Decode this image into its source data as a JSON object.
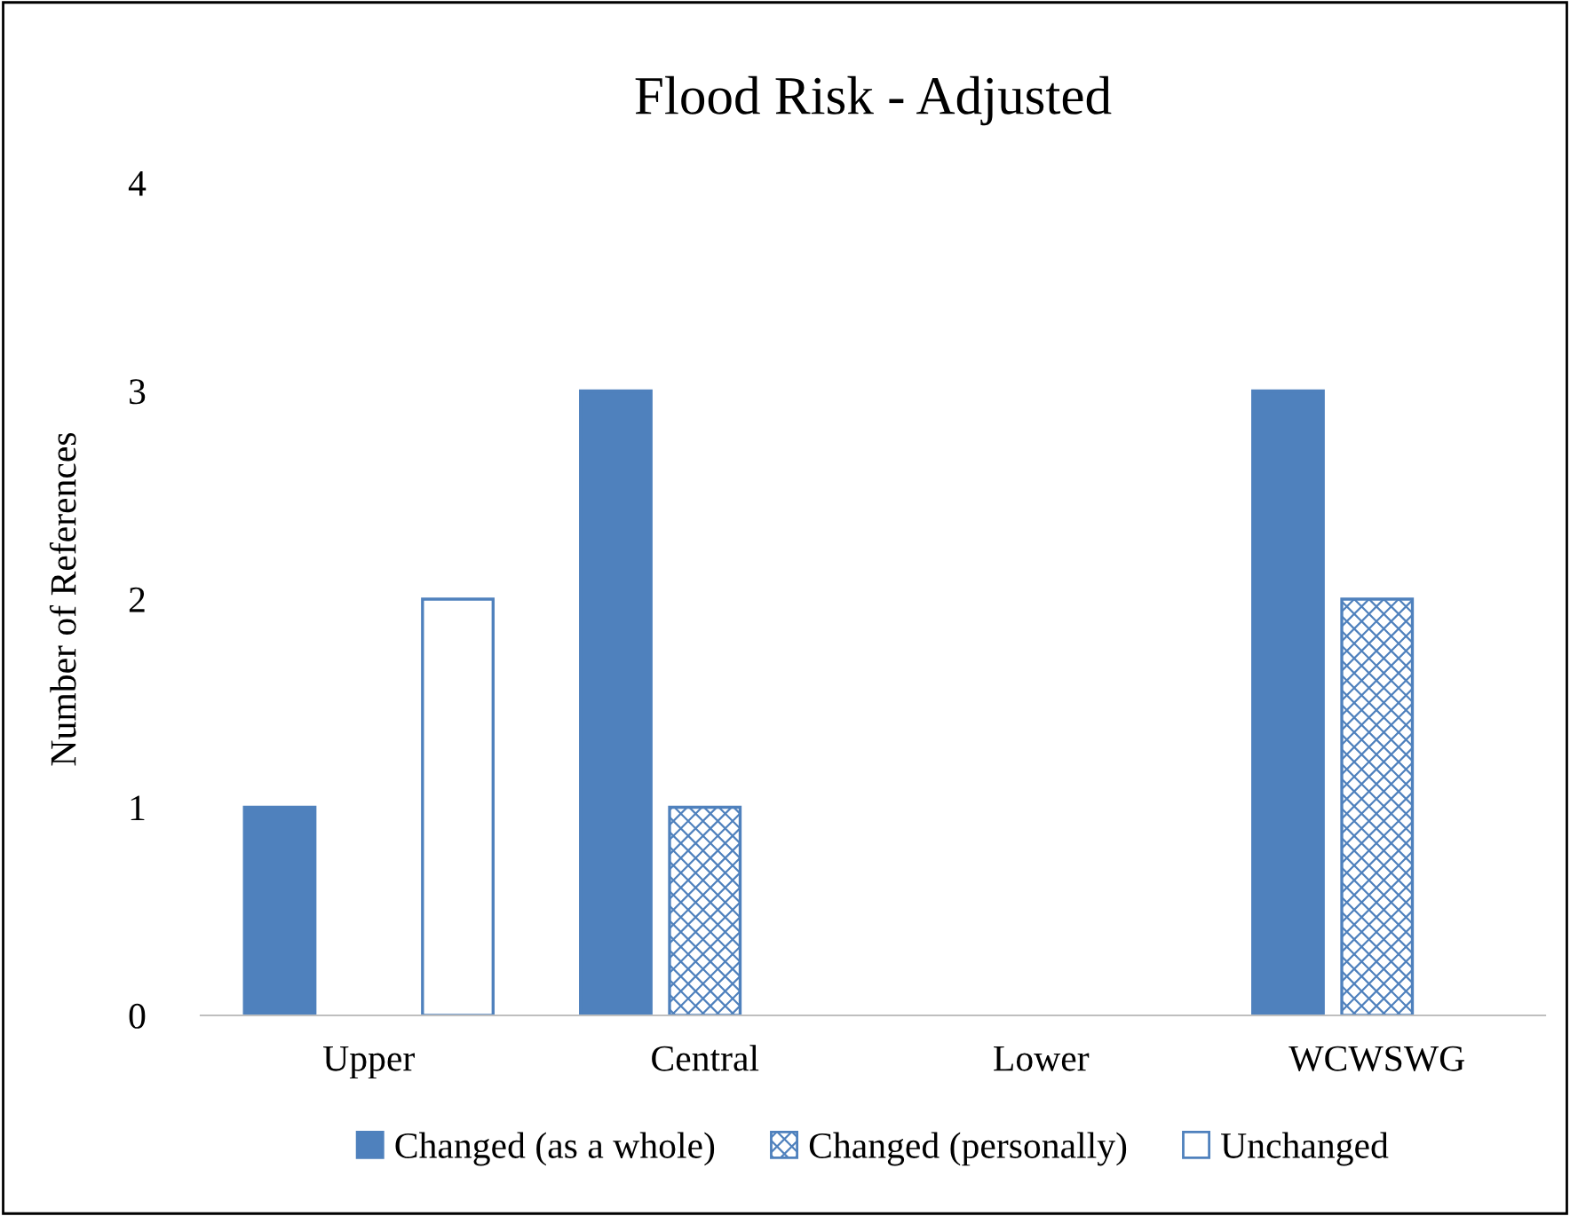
{
  "chart_data": {
    "type": "bar",
    "title": "Flood Risk - Adjusted",
    "ylabel": "Number of References",
    "categories": [
      "Upper",
      "Central",
      "Lower",
      "WCWSWG"
    ],
    "series": [
      {
        "name": "Changed (as a whole)",
        "color": "#4f81bd",
        "values": [
          1,
          3,
          0,
          3
        ]
      },
      {
        "name": "Changed (personally)",
        "color": "#4f81bd",
        "values": [
          0,
          1,
          0,
          2
        ]
      },
      {
        "name": "Unchanged",
        "color": "#4f81bd",
        "values": [
          2,
          0,
          0,
          0
        ]
      }
    ],
    "ylim": [
      0,
      4
    ],
    "yticks": [
      0,
      1,
      2,
      3,
      4
    ],
    "grid": false,
    "legend": "bottom"
  }
}
